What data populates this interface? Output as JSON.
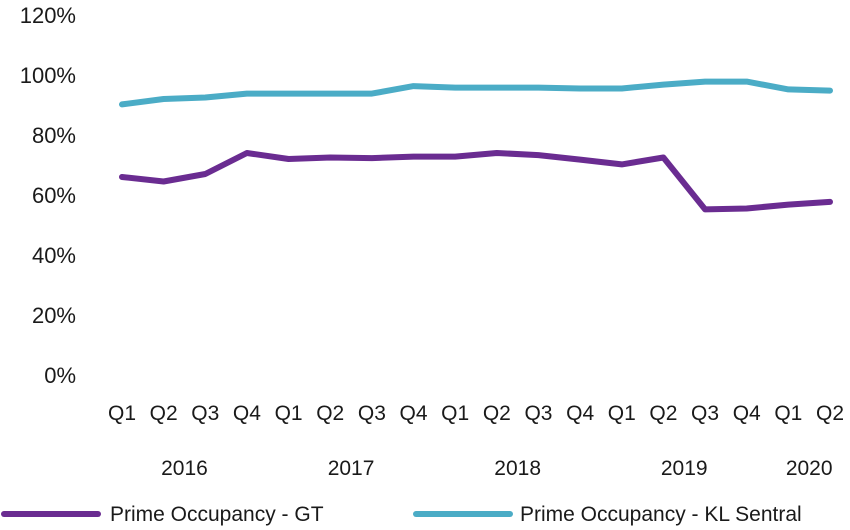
{
  "chart_data": {
    "type": "line",
    "x": [
      "Q1",
      "Q2",
      "Q3",
      "Q4",
      "Q1",
      "Q2",
      "Q3",
      "Q4",
      "Q1",
      "Q2",
      "Q3",
      "Q4",
      "Q1",
      "Q2",
      "Q3",
      "Q4",
      "Q1",
      "Q2"
    ],
    "years": [
      {
        "label": "2016",
        "quarters": [
          0,
          3
        ]
      },
      {
        "label": "2017",
        "quarters": [
          4,
          7
        ]
      },
      {
        "label": "2018",
        "quarters": [
          8,
          11
        ]
      },
      {
        "label": "2019",
        "quarters": [
          12,
          15
        ]
      },
      {
        "label": "2020",
        "quarters": [
          16,
          17
        ]
      }
    ],
    "series": [
      {
        "name": "Prime Occupancy - GT",
        "color": "#6a2c91",
        "values": [
          66,
          64.5,
          67,
          74,
          72,
          72.5,
          72.3,
          72.8,
          72.8,
          74,
          73.3,
          71.8,
          70.2,
          72.5,
          55.2,
          55.5,
          56.8,
          57.7
        ]
      },
      {
        "name": "Prime Occupancy - KL Sentral",
        "color": "#4bacc6",
        "values": [
          90.2,
          92,
          92.5,
          93.8,
          93.8,
          93.8,
          93.8,
          96.3,
          95.8,
          95.8,
          95.8,
          95.5,
          95.5,
          96.8,
          97.8,
          97.8,
          95.2,
          94.8
        ]
      }
    ],
    "ylim": [
      0,
      120
    ],
    "yticks": [
      "0%",
      "20%",
      "40%",
      "60%",
      "80%",
      "100%",
      "120%"
    ],
    "ytick_values": [
      0,
      20,
      40,
      60,
      80,
      100,
      120
    ],
    "grid": false,
    "legend_position": "bottom"
  }
}
